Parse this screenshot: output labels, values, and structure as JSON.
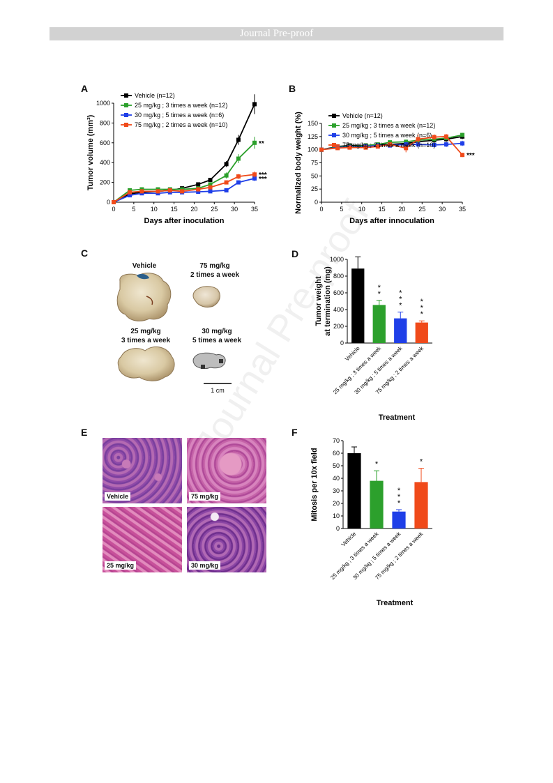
{
  "header": {
    "banner": "Journal Pre-proof",
    "watermark": "Journal Pre-proof"
  },
  "panel_labels": {
    "A": "A",
    "B": "B",
    "C": "C",
    "D": "D",
    "E": "E",
    "F": "F"
  },
  "colors": {
    "vehicle": "#000000",
    "mg25": "#2ca02c",
    "mg30": "#1f3fe8",
    "mg75": "#f04a1a"
  },
  "photos": {
    "vehicle": "Vehicle",
    "mg75": [
      "75 mg/kg",
      "2 times a week"
    ],
    "mg25": [
      "25 mg/kg",
      "3 times a week"
    ],
    "mg30": [
      "30 mg/kg",
      "5 times a week"
    ],
    "scale": "1 cm"
  },
  "histology": {
    "labels": [
      "Vehicle",
      "75 mg/kg",
      "25 mg/kg",
      "30 mg/kg"
    ]
  },
  "chart_data": [
    {
      "panel": "A",
      "type": "line",
      "xlabel": "Days after inoculation",
      "ylabel": "Tumor volume (mm³)",
      "xlim": [
        0,
        35
      ],
      "ylim": [
        0,
        1000
      ],
      "xticks": [
        0,
        5,
        10,
        15,
        20,
        25,
        30,
        35
      ],
      "yticks": [
        0,
        200,
        400,
        600,
        800,
        1000
      ],
      "legend": "top-left",
      "series": [
        {
          "name": "Vehicle (n=12)",
          "color": "#000000",
          "marker": "square",
          "x": [
            0,
            4,
            7,
            11,
            14,
            17,
            21,
            24,
            28,
            31,
            35
          ],
          "y": [
            0,
            85,
            100,
            110,
            120,
            140,
            180,
            225,
            385,
            630,
            990
          ],
          "err": [
            5,
            10,
            10,
            10,
            12,
            15,
            20,
            20,
            30,
            50,
            100
          ],
          "annotation": ""
        },
        {
          "name": "25 mg/kg ; 3 times a week (n=12)",
          "color": "#2ca02c",
          "marker": "square",
          "x": [
            0,
            4,
            7,
            11,
            14,
            17,
            21,
            24,
            28,
            31,
            35
          ],
          "y": [
            0,
            120,
            130,
            130,
            130,
            130,
            140,
            180,
            270,
            440,
            600
          ],
          "err": [
            5,
            10,
            10,
            10,
            10,
            10,
            12,
            20,
            30,
            45,
            60
          ],
          "annotation": "**"
        },
        {
          "name": "30 mg/kg ; 5 times a week (n=6)",
          "color": "#1f3fe8",
          "marker": "square",
          "x": [
            0,
            4,
            7,
            11,
            14,
            17,
            21,
            24,
            28,
            31,
            35
          ],
          "y": [
            0,
            70,
            90,
            90,
            100,
            100,
            105,
            110,
            120,
            200,
            240
          ],
          "err": [
            5,
            8,
            8,
            8,
            8,
            8,
            10,
            10,
            15,
            20,
            25
          ],
          "annotation": "***"
        },
        {
          "name": "75 mg/kg ; 2 times a week (n=10)",
          "color": "#f04a1a",
          "marker": "square",
          "x": [
            0,
            4,
            7,
            11,
            14,
            17,
            21,
            24,
            28,
            31,
            35
          ],
          "y": [
            0,
            100,
            110,
            110,
            120,
            110,
            130,
            150,
            200,
            260,
            280
          ],
          "err": [
            5,
            10,
            10,
            10,
            10,
            10,
            12,
            15,
            20,
            25,
            30
          ],
          "annotation": "***"
        }
      ]
    },
    {
      "panel": "B",
      "type": "line",
      "xlabel": "Days after innoculation",
      "ylabel": "Normalized body weight (%)",
      "xlim": [
        0,
        35
      ],
      "ylim": [
        0,
        150
      ],
      "xticks": [
        0,
        5,
        10,
        15,
        20,
        25,
        30,
        35
      ],
      "yticks": [
        0,
        25,
        50,
        75,
        100,
        125,
        150
      ],
      "legend": "top-left",
      "series": [
        {
          "name": "Vehicle (n=12)",
          "color": "#000000",
          "marker": "square",
          "x": [
            0,
            4,
            7,
            11,
            14,
            17,
            21,
            24,
            28,
            31,
            35
          ],
          "y": [
            100,
            106,
            108,
            108,
            109,
            110,
            112,
            115,
            118,
            120,
            125
          ],
          "err": [
            2,
            3,
            3,
            3,
            3,
            3,
            4,
            4,
            5,
            5,
            5
          ],
          "annotation": ""
        },
        {
          "name": "25 mg/kg ; 3 times a week (n=12)",
          "color": "#2ca02c",
          "marker": "square",
          "x": [
            0,
            4,
            7,
            11,
            14,
            17,
            21,
            24,
            28,
            31,
            35
          ],
          "y": [
            100,
            105,
            106,
            108,
            110,
            114,
            115,
            118,
            120,
            122,
            128
          ],
          "err": [
            2,
            3,
            3,
            3,
            3,
            3,
            4,
            4,
            4,
            4,
            4
          ],
          "annotation": ""
        },
        {
          "name": "30 mg/kg ; 5 times a week (n=6)",
          "color": "#1f3fe8",
          "marker": "square",
          "x": [
            0,
            4,
            7,
            11,
            14,
            17,
            21,
            24,
            28,
            31,
            35
          ],
          "y": [
            100,
            104,
            105,
            106,
            108,
            108,
            110,
            110,
            109,
            110,
            112
          ],
          "err": [
            2,
            3,
            3,
            3,
            3,
            3,
            4,
            4,
            4,
            5,
            5
          ],
          "annotation": ""
        },
        {
          "name": "75 mg/kg ; 2 times a week (n=10)",
          "color": "#f04a1a",
          "marker": "square",
          "x": [
            0,
            4,
            7,
            11,
            14,
            17,
            21,
            24,
            28,
            31,
            35
          ],
          "y": [
            100,
            103,
            104,
            104,
            106,
            110,
            103,
            120,
            124,
            125,
            90
          ],
          "err": [
            2,
            3,
            3,
            3,
            3,
            3,
            8,
            10,
            5,
            5,
            4
          ],
          "annotation": "***"
        }
      ]
    },
    {
      "panel": "D",
      "type": "bar",
      "xlabel": "Treatment",
      "ylabel": [
        "Tumor weight",
        "at termination (mg)"
      ],
      "ylim": [
        0,
        1000
      ],
      "yticks": [
        0,
        200,
        400,
        600,
        800,
        1000
      ],
      "categories": [
        "Vehicle",
        "25 mg/kg ; 3 times a week",
        "30 mg/kg ; 5 times a week",
        "75 mg/kg ; 2 times a week"
      ],
      "values": [
        890,
        455,
        295,
        245
      ],
      "errors": [
        140,
        55,
        75,
        20
      ],
      "colors": [
        "#000000",
        "#2ca02c",
        "#1f3fe8",
        "#f04a1a"
      ],
      "annotations": [
        "",
        "**",
        "***",
        "***"
      ]
    },
    {
      "panel": "F",
      "type": "bar",
      "xlabel": "Treatment",
      "ylabel": "Mitosis per 10x field",
      "ylim": [
        0,
        70
      ],
      "yticks": [
        0,
        10,
        20,
        30,
        40,
        50,
        60,
        70
      ],
      "categories": [
        "Vehicle",
        "25 mg/kg ; 3 times a week",
        "30 mg/kg ; 5 times a week",
        "75 mg/kg ; 2 times a week"
      ],
      "values": [
        60,
        38,
        13.5,
        37
      ],
      "errors": [
        5,
        8,
        1.5,
        11
      ],
      "colors": [
        "#000000",
        "#2ca02c",
        "#1f3fe8",
        "#f04a1a"
      ],
      "annotations": [
        "",
        "*",
        "***",
        "*"
      ]
    }
  ]
}
